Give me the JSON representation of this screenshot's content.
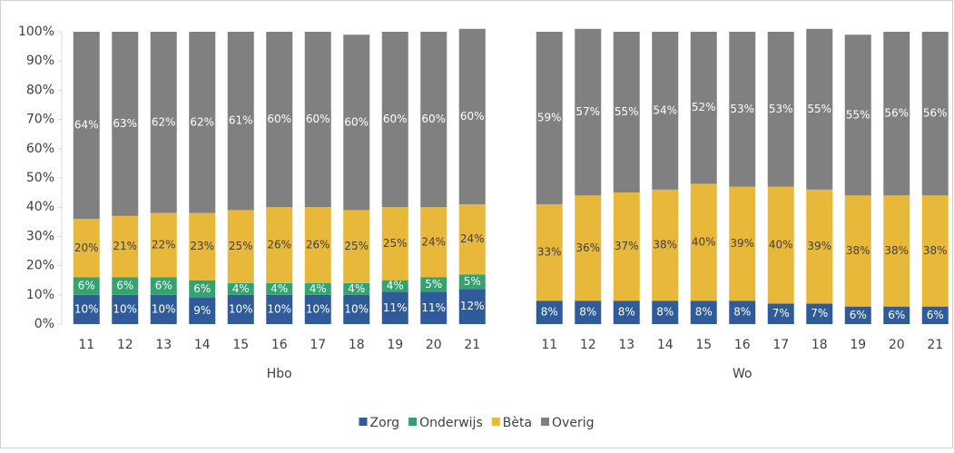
{
  "chart_data": {
    "type": "stacked_bar",
    "categories": [
      "11",
      "12",
      "13",
      "14",
      "15",
      "16",
      "17",
      "18",
      "19",
      "20",
      "21",
      "11",
      "12",
      "13",
      "14",
      "15",
      "16",
      "17",
      "18",
      "19",
      "20",
      "21"
    ],
    "group_labels": [
      "Hbo",
      "Wo"
    ],
    "ylim": [
      0,
      100
    ],
    "yticks": [
      {
        "value": 0,
        "label": "0%"
      },
      {
        "value": 10,
        "label": "10%"
      },
      {
        "value": 20,
        "label": "20%"
      },
      {
        "value": 30,
        "label": "30%"
      },
      {
        "value": 40,
        "label": "40%"
      },
      {
        "value": 50,
        "label": "50%"
      },
      {
        "value": 60,
        "label": "60%"
      },
      {
        "value": 70,
        "label": "70%"
      },
      {
        "value": 80,
        "label": "80%"
      },
      {
        "value": 90,
        "label": "90%"
      },
      {
        "value": 100,
        "label": "100%"
      }
    ],
    "grid": false,
    "legend": "bottom",
    "series": [
      {
        "name": "Zorg",
        "color": "#2f5b9a",
        "label_color": "#ffffff",
        "values": [
          10,
          10,
          10,
          9,
          10,
          10,
          10,
          10,
          11,
          11,
          12,
          8,
          8,
          8,
          8,
          8,
          8,
          7,
          7,
          6,
          6,
          6
        ],
        "value_labels": [
          "10%",
          "10%",
          "10%",
          "9%",
          "10%",
          "10%",
          "10%",
          "10%",
          "11%",
          "11%",
          "12%",
          "8%",
          "8%",
          "8%",
          "8%",
          "8%",
          "8%",
          "7%",
          "7%",
          "6%",
          "6%",
          "6%"
        ]
      },
      {
        "name": "Onderwijs",
        "color": "#36a271",
        "label_color": "#ffffff",
        "values": [
          6,
          6,
          6,
          6,
          4,
          4,
          4,
          4,
          4,
          5,
          5,
          null,
          null,
          null,
          null,
          null,
          null,
          null,
          null,
          null,
          null,
          null
        ],
        "value_labels": [
          "6%",
          "6%",
          "6%",
          "6%",
          "4%",
          "4%",
          "4%",
          "4%",
          "4%",
          "5%",
          "5%",
          null,
          null,
          null,
          null,
          null,
          null,
          null,
          null,
          null,
          null,
          null
        ]
      },
      {
        "name": "Bèta",
        "color": "#e8b83a",
        "label_color": "#404040",
        "values": [
          20,
          21,
          22,
          23,
          25,
          26,
          26,
          25,
          25,
          24,
          24,
          33,
          36,
          37,
          38,
          40,
          39,
          40,
          39,
          38,
          38,
          38
        ],
        "value_labels": [
          "20%",
          "21%",
          "22%",
          "23%",
          "25%",
          "26%",
          "26%",
          "25%",
          "25%",
          "24%",
          "24%",
          "33%",
          "36%",
          "37%",
          "38%",
          "40%",
          "39%",
          "40%",
          "39%",
          "38%",
          "38%",
          "38%"
        ]
      },
      {
        "name": "Overig",
        "color": "#808080",
        "label_color": "#ffffff",
        "values": [
          64,
          63,
          62,
          62,
          61,
          60,
          60,
          60,
          60,
          60,
          60,
          59,
          57,
          55,
          54,
          52,
          53,
          53,
          55,
          55,
          56,
          56
        ],
        "value_labels": [
          "64%",
          "63%",
          "62%",
          "62%",
          "61%",
          "60%",
          "60%",
          "60%",
          "60%",
          "60%",
          "60%",
          "59%",
          "57%",
          "55%",
          "54%",
          "52%",
          "53%",
          "53%",
          "55%",
          "55%",
          "56%",
          "56%"
        ]
      }
    ]
  }
}
